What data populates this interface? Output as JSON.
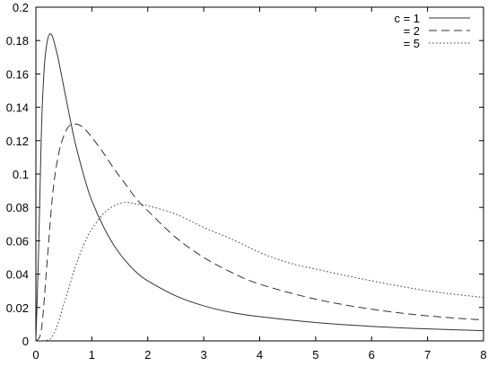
{
  "chart_data": {
    "type": "line",
    "xlim": [
      0,
      8
    ],
    "ylim": [
      0,
      0.2
    ],
    "x_ticks": [
      "0",
      "1",
      "2",
      "3",
      "4",
      "5",
      "6",
      "7",
      "8"
    ],
    "y_ticks": [
      "0",
      "0.02",
      "0.04",
      "0.06",
      "0.08",
      "0.1",
      "0.12",
      "0.14",
      "0.16",
      "0.18",
      "0.2"
    ],
    "grid": false,
    "legend_position": "top-right",
    "series": [
      {
        "name": "c = 1",
        "line_style": "solid",
        "color": "#333333",
        "x": [
          0.0,
          0.05,
          0.1,
          0.15,
          0.2,
          0.25,
          0.3,
          0.35,
          0.4,
          0.5,
          0.6,
          0.7,
          0.8,
          0.9,
          1.0,
          1.2,
          1.4,
          1.6,
          1.8,
          2.0,
          2.5,
          3.0,
          3.5,
          4.0,
          5.0,
          6.0,
          7.0,
          8.0
        ],
        "y": [
          0.0,
          0.056,
          0.127,
          0.164,
          0.179,
          0.184,
          0.182,
          0.176,
          0.169,
          0.152,
          0.135,
          0.119,
          0.106,
          0.094,
          0.084,
          0.069,
          0.057,
          0.048,
          0.041,
          0.036,
          0.027,
          0.021,
          0.017,
          0.0145,
          0.011,
          0.0087,
          0.0072,
          0.0061
        ]
      },
      {
        "name": "= 2",
        "line_style": "dashed",
        "color": "#333333",
        "x": [
          0.0,
          0.1,
          0.2,
          0.3,
          0.4,
          0.5,
          0.6,
          0.7,
          0.8,
          0.9,
          1.0,
          1.2,
          1.4,
          1.6,
          1.8,
          2.0,
          2.5,
          3.0,
          3.5,
          4.0,
          5.0,
          6.0,
          7.0,
          8.0
        ],
        "y": [
          0.0,
          0.007,
          0.047,
          0.088,
          0.111,
          0.123,
          0.129,
          0.13,
          0.129,
          0.126,
          0.122,
          0.113,
          0.103,
          0.094,
          0.085,
          0.078,
          0.062,
          0.05,
          0.041,
          0.034,
          0.025,
          0.019,
          0.015,
          0.0125
        ]
      },
      {
        "name": "= 5",
        "line_style": "dotted",
        "color": "#333333",
        "x": [
          0.0,
          0.2,
          0.3,
          0.4,
          0.5,
          0.6,
          0.7,
          0.8,
          0.9,
          1.0,
          1.2,
          1.4,
          1.6,
          1.8,
          2.0,
          2.5,
          3.0,
          3.5,
          4.0,
          4.5,
          5.0,
          6.0,
          7.0,
          8.0
        ],
        "y": [
          0.0,
          0.0003,
          0.003,
          0.011,
          0.022,
          0.033,
          0.044,
          0.053,
          0.061,
          0.067,
          0.076,
          0.081,
          0.083,
          0.082,
          0.081,
          0.076,
          0.068,
          0.061,
          0.053,
          0.047,
          0.043,
          0.036,
          0.03,
          0.026
        ]
      }
    ]
  }
}
